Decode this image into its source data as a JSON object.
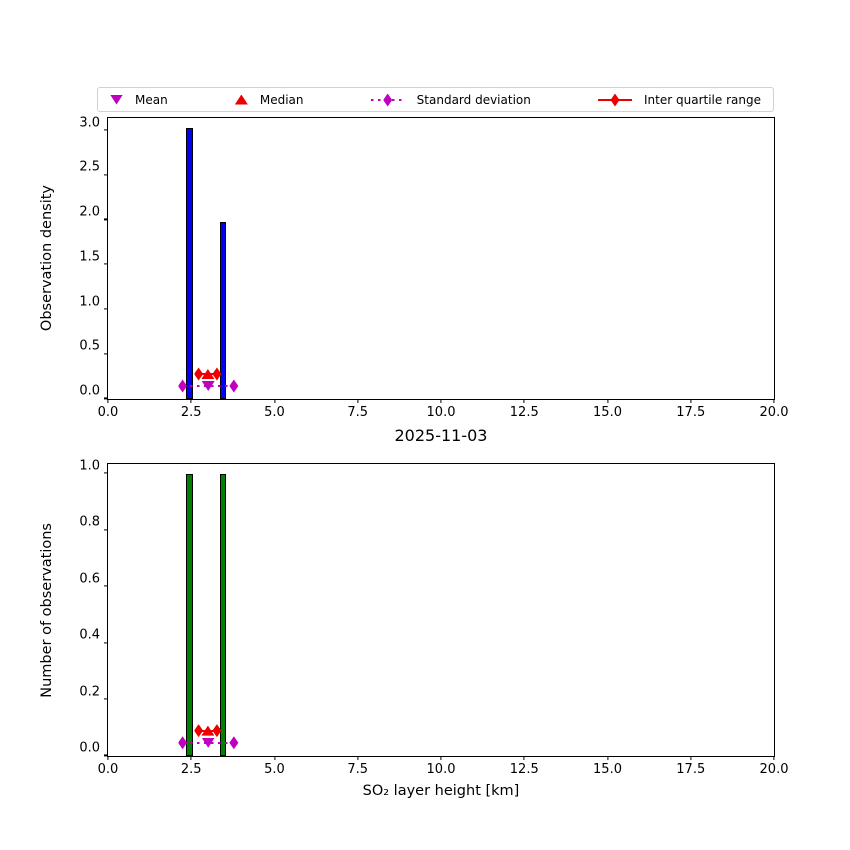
{
  "figure": {
    "title": "2025-11-03",
    "xlabel": "SO₂ layer height [km]",
    "colors": {
      "blue_bar": "#0202f0",
      "green_bar": "#038003",
      "red": "#ee0000",
      "magenta": "#bf00bf",
      "axis": "#000000",
      "legend_border": "#d2d2d2"
    }
  },
  "legend": {
    "items": [
      {
        "label": "Mean",
        "marker": "triangle-down",
        "color": "#bf00bf"
      },
      {
        "label": "Median",
        "marker": "triangle-up",
        "color": "#ee0000"
      },
      {
        "label": "Standard deviation",
        "marker": "diamond-dotted-line",
        "color": "#bf00bf"
      },
      {
        "label": "Inter quartile range",
        "marker": "diamond-solid-line",
        "color": "#ee0000"
      }
    ]
  },
  "chart_data": [
    {
      "type": "bar",
      "panel": "top",
      "ylabel": "Observation density",
      "xlim": [
        0,
        20
      ],
      "ylim": [
        0,
        3.14
      ],
      "xticks": [
        0,
        2.5,
        5,
        7.5,
        10,
        12.5,
        15,
        17.5,
        20
      ],
      "yticks": [
        0,
        0.5,
        1.0,
        1.5,
        2.0,
        2.5,
        3.0
      ],
      "bar_color_key": "blue_bar",
      "bars": [
        {
          "x": 2.45,
          "width": 0.2,
          "height": 3.03
        },
        {
          "x": 3.45,
          "width": 0.2,
          "height": 1.98
        }
      ],
      "stats": {
        "mean": 3.01,
        "median": 3.0,
        "std_range": [
          2.24,
          3.78
        ],
        "iqr_range": [
          2.72,
          3.27
        ],
        "mean_row_y": 0.145,
        "median_row_y": 0.28
      }
    },
    {
      "type": "bar",
      "panel": "bottom",
      "ylabel": "Number of observations",
      "xlim": [
        0,
        20
      ],
      "ylim": [
        0,
        1.035
      ],
      "xticks": [
        0,
        2.5,
        5,
        7.5,
        10,
        12.5,
        15,
        17.5,
        20
      ],
      "yticks": [
        0,
        0.2,
        0.4,
        0.6,
        0.8,
        1.0
      ],
      "bar_color_key": "green_bar",
      "bars": [
        {
          "x": 2.45,
          "width": 0.2,
          "height": 1.0
        },
        {
          "x": 3.45,
          "width": 0.2,
          "height": 1.0
        }
      ],
      "stats": {
        "mean": 3.01,
        "median": 3.0,
        "std_range": [
          2.24,
          3.78
        ],
        "iqr_range": [
          2.72,
          3.27
        ],
        "mean_row_y": 0.047,
        "median_row_y": 0.09
      }
    }
  ]
}
